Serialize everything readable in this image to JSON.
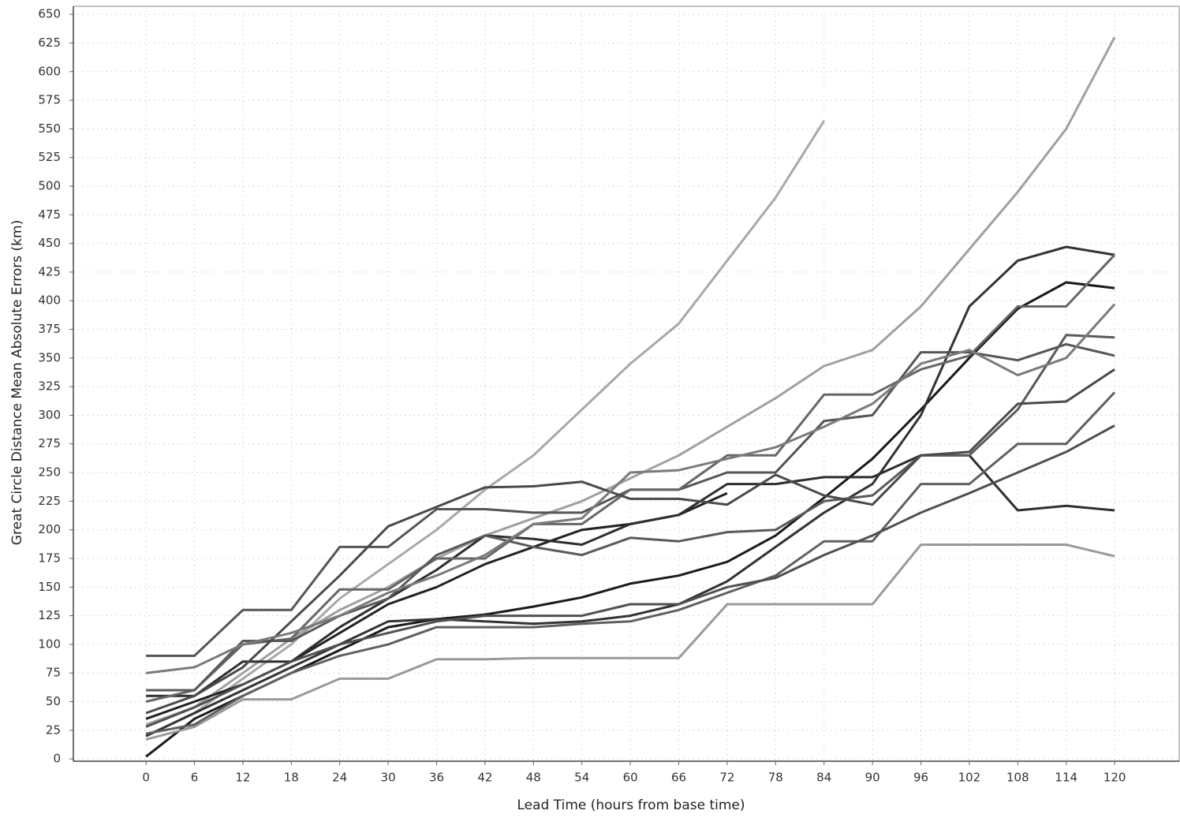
{
  "chart_data": {
    "type": "line",
    "xlabel": "Lead Time (hours from base time)",
    "ylabel": "Great Circle Distance Mean Absolute Errors (km)",
    "x": [
      0,
      6,
      12,
      18,
      24,
      30,
      36,
      42,
      48,
      54,
      60,
      66,
      72,
      78,
      84,
      90,
      96,
      102,
      108,
      114,
      120
    ],
    "xlim": [
      -9,
      128
    ],
    "ylim": [
      -2,
      657
    ],
    "xticks": [
      0,
      6,
      12,
      18,
      24,
      30,
      36,
      42,
      48,
      54,
      60,
      66,
      72,
      78,
      84,
      90,
      96,
      102,
      108,
      114,
      120
    ],
    "yticks": [
      0,
      25,
      50,
      75,
      100,
      125,
      150,
      175,
      200,
      225,
      250,
      275,
      300,
      325,
      350,
      375,
      400,
      425,
      450,
      475,
      500,
      525,
      550,
      575,
      600,
      625,
      650
    ],
    "grid": true,
    "series": [
      {
        "color": "#a8a8a8",
        "values": [
          20,
          40,
          70,
          100,
          140,
          170,
          200,
          235,
          265,
          305,
          345,
          380,
          435,
          490,
          557,
          null,
          null,
          null,
          null,
          null,
          null
        ]
      },
      {
        "color": "#a0a0a0",
        "values": [
          30,
          45,
          75,
          105,
          130,
          150,
          175,
          195,
          210,
          225,
          245,
          265,
          290,
          315,
          343,
          357,
          395,
          445,
          495,
          550,
          630
        ]
      },
      {
        "color": "#1a1a1a",
        "values": [
          2,
          35,
          55,
          75,
          95,
          115,
          122,
          126,
          133,
          141,
          153,
          160,
          172,
          195,
          228,
          262,
          305,
          350,
          393,
          416,
          411
        ]
      },
      {
        "color": "#333333",
        "values": [
          20,
          40,
          60,
          80,
          100,
          120,
          122,
          120,
          118,
          120,
          125,
          135,
          155,
          185,
          215,
          240,
          300,
          395,
          435,
          447,
          440
        ]
      },
      {
        "color": "#222222",
        "values": [
          35,
          50,
          65,
          85,
          110,
          135,
          150,
          170,
          185,
          200,
          205,
          213,
          232,
          null,
          null,
          null,
          null,
          null,
          null,
          null,
          null
        ]
      },
      {
        "color": "#2e2e2e",
        "values": [
          55,
          55,
          85,
          85,
          115,
          140,
          165,
          195,
          192,
          187,
          205,
          213,
          240,
          240,
          246,
          246,
          265,
          265,
          217,
          221,
          217
        ]
      },
      {
        "color": "#555555",
        "values": [
          90,
          90,
          130,
          130,
          185,
          185,
          218,
          218,
          215,
          215,
          235,
          235,
          250,
          250,
          295,
          300,
          355,
          355,
          348,
          362,
          352
        ]
      },
      {
        "color": "#666666",
        "values": [
          50,
          60,
          100,
          105,
          148,
          148,
          175,
          175,
          205,
          205,
          235,
          235,
          265,
          265,
          318,
          318,
          340,
          352,
          395,
          395,
          440
        ]
      },
      {
        "color": "#5a5a5a",
        "values": [
          60,
          60,
          103,
          103,
          125,
          140,
          178,
          195,
          185,
          178,
          193,
          190,
          198,
          200,
          225,
          230,
          265,
          265,
          305,
          370,
          368
        ]
      },
      {
        "color": "#4a4a4a",
        "values": [
          40,
          55,
          80,
          120,
          160,
          203,
          220,
          237,
          238,
          242,
          227,
          227,
          222,
          248,
          230,
          222,
          265,
          268,
          310,
          312,
          340
        ]
      },
      {
        "color": "#9a9a9a",
        "values": [
          17,
          28,
          52,
          52,
          70,
          70,
          87,
          87,
          88,
          88,
          88,
          88,
          135,
          135,
          135,
          135,
          187,
          187,
          187,
          187,
          177
        ]
      },
      {
        "color": "#606060",
        "values": [
          22,
          30,
          55,
          75,
          90,
          100,
          115,
          115,
          115,
          118,
          120,
          130,
          145,
          160,
          190,
          190,
          240,
          240,
          275,
          275,
          320
        ]
      },
      {
        "color": "#7a7a7a",
        "values": [
          75,
          80,
          100,
          110,
          125,
          145,
          160,
          178,
          205,
          210,
          250,
          252,
          262,
          272,
          290,
          310,
          345,
          357,
          335,
          350,
          397
        ]
      },
      {
        "color": "#505050",
        "values": [
          28,
          45,
          65,
          85,
          100,
          110,
          120,
          125,
          125,
          125,
          135,
          135,
          150,
          158,
          178,
          195,
          215,
          232,
          250,
          268,
          291
        ]
      }
    ]
  }
}
